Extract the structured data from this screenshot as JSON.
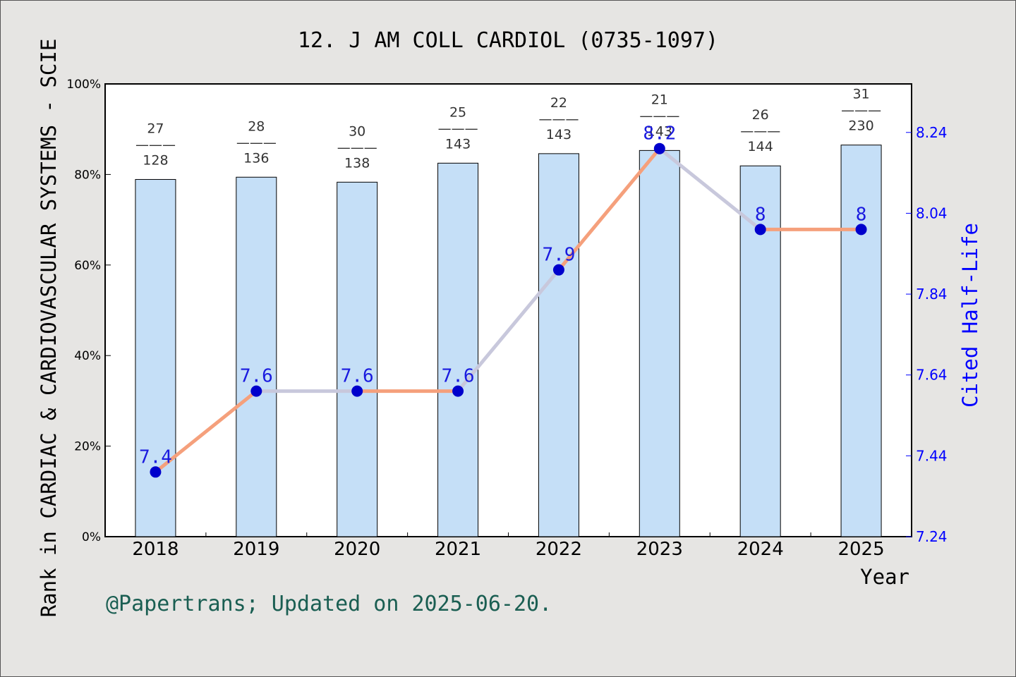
{
  "title": "12. J AM COLL CARDIOL (0735-1097)",
  "footer": "@Papertrans; Updated on 2025-06-20.",
  "colors": {
    "background": "#e6e5e3",
    "bar_fill": "#c5dff7",
    "line_orange": "#f5a07c",
    "line_gray": "#c8c8dc",
    "marker": "#0000cc",
    "right_axis": "#0000ff",
    "footer": "#1a5e52"
  },
  "chart_data": {
    "type": "bar",
    "title": "12. J AM COLL CARDIOL (0735-1097)",
    "xlabel": "Year",
    "ylabel": "Rank in CARDIAC & CARDIOVASCULAR SYSTEMS - SCIE",
    "y2label": "Cited Half-Life",
    "categories": [
      "2018",
      "2019",
      "2020",
      "2021",
      "2022",
      "2023",
      "2024",
      "2025"
    ],
    "ylim": [
      0,
      100
    ],
    "yticks": [
      "0%",
      "20%",
      "40%",
      "60%",
      "80%",
      "100%"
    ],
    "y2lim": [
      7.24,
      8.36
    ],
    "y2ticks": [
      "7.24",
      "7.44",
      "7.64",
      "7.84",
      "8.04",
      "8.24"
    ],
    "series": [
      {
        "type": "bar",
        "values": [
          78.9,
          79.4,
          78.3,
          82.5,
          84.6,
          85.3,
          81.9,
          86.5
        ],
        "rank": [
          "27",
          "28",
          "30",
          "25",
          "22",
          "21",
          "26",
          "31"
        ],
        "total": [
          "128",
          "136",
          "138",
          "143",
          "143",
          "143",
          "144",
          "230"
        ]
      },
      {
        "type": "line",
        "values": [
          7.4,
          7.6,
          7.6,
          7.6,
          7.9,
          8.2,
          8,
          8
        ],
        "labels": [
          "7.4",
          "7.6",
          "7.6",
          "7.6",
          "7.9",
          "8.2",
          "8",
          "8"
        ]
      }
    ],
    "grid": false
  }
}
